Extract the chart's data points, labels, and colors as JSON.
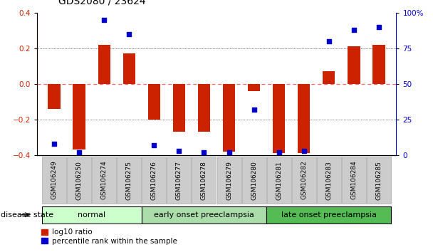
{
  "title": "GDS2080 / 23624",
  "samples": [
    "GSM106249",
    "GSM106250",
    "GSM106274",
    "GSM106275",
    "GSM106276",
    "GSM106277",
    "GSM106278",
    "GSM106279",
    "GSM106280",
    "GSM106281",
    "GSM106282",
    "GSM106283",
    "GSM106284",
    "GSM106285"
  ],
  "log10_ratio": [
    -0.14,
    -0.37,
    0.22,
    0.17,
    -0.2,
    -0.27,
    -0.27,
    -0.38,
    -0.04,
    -0.39,
    -0.39,
    0.07,
    0.21,
    0.22
  ],
  "percentile_rank": [
    8,
    2,
    95,
    85,
    7,
    3,
    2,
    2,
    32,
    2,
    3,
    80,
    88,
    90
  ],
  "group_bounds": [
    [
      -0.5,
      3.5,
      "#ccffcc",
      "normal"
    ],
    [
      3.5,
      8.5,
      "#aaddaa",
      "early onset preeclampsia"
    ],
    [
      8.5,
      13.5,
      "#55bb55",
      "late onset preeclampsia"
    ]
  ],
  "disease_state_label": "disease state",
  "left_yaxis_color": "#cc2200",
  "right_yaxis_color": "#0000cc",
  "bar_color": "#cc2200",
  "dot_color": "#0000cc",
  "ylim_left": [
    -0.4,
    0.4
  ],
  "ylim_right": [
    0,
    100
  ],
  "yticks_left": [
    -0.4,
    -0.2,
    0.0,
    0.2,
    0.4
  ],
  "yticks_right": [
    0,
    25,
    50,
    75,
    100
  ],
  "ytick_labels_right": [
    "0",
    "25",
    "50",
    "75",
    "100%"
  ],
  "zero_line_color": "#ff6666",
  "dotted_line_color": "#aaaaaa",
  "grid_dotted_vals": [
    -0.2,
    0.2
  ],
  "legend_items": [
    "log10 ratio",
    "percentile rank within the sample"
  ],
  "legend_colors": [
    "#cc2200",
    "#0000cc"
  ],
  "bar_width": 0.5,
  "dot_size": 18,
  "title_fontsize": 10,
  "tick_label_fontsize": 6.5,
  "axis_tick_fontsize": 7.5,
  "disease_fontsize": 8,
  "legend_fontsize": 7.5
}
